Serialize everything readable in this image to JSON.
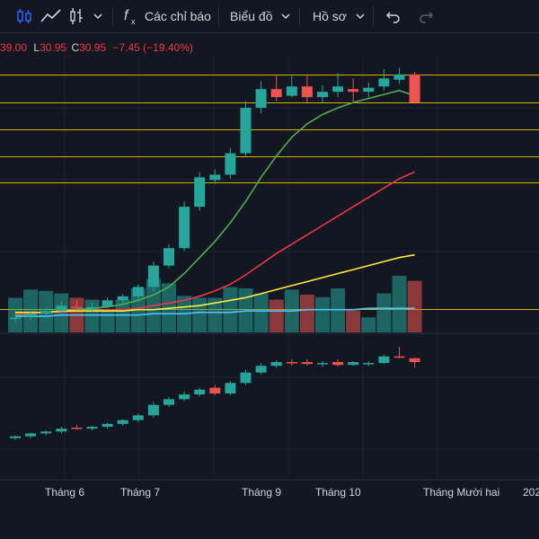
{
  "toolbar": {
    "indicators_label": "Các chỉ báo",
    "chart_label": "Biểu đồ",
    "profile_label": "Hồ sơ"
  },
  "legend": {
    "o_partial": "39.00",
    "l_label": "L",
    "l_value": "30.95",
    "c_label": "C",
    "c_value": "30.95",
    "change": "−7.45 (−19.40%)"
  },
  "time_axis": {
    "labels": [
      "Tháng 6",
      "Tháng 7",
      "Tháng 9",
      "Tháng 10",
      "Tháng Mười hai",
      "202"
    ]
  },
  "colors": {
    "background": "#131722",
    "up": "#26a69a",
    "down": "#ef5350",
    "ma_green": "#4caf50",
    "ma_red": "#f23645",
    "ma_yellow": "#ffeb3b",
    "ma_blue": "#4fc3f7",
    "level_line": "#d4b400"
  },
  "chart_data": {
    "type": "candlestick",
    "upper_panel": {
      "candles": [
        {
          "o": 30.2,
          "h": 30.6,
          "l": 29.9,
          "c": 30.3
        },
        {
          "o": 30.4,
          "h": 30.8,
          "l": 30.1,
          "c": 30.6
        },
        {
          "o": 30.6,
          "h": 31.0,
          "l": 30.3,
          "c": 30.8
        },
        {
          "o": 30.8,
          "h": 31.5,
          "l": 30.6,
          "c": 31.2
        },
        {
          "o": 31.1,
          "h": 31.6,
          "l": 30.8,
          "c": 31.0
        },
        {
          "o": 31.0,
          "h": 31.4,
          "l": 30.8,
          "c": 31.1
        },
        {
          "o": 31.1,
          "h": 31.8,
          "l": 31.0,
          "c": 31.6
        },
        {
          "o": 31.6,
          "h": 32.1,
          "l": 31.3,
          "c": 31.9
        },
        {
          "o": 31.9,
          "h": 32.8,
          "l": 31.7,
          "c": 32.6
        },
        {
          "o": 32.6,
          "h": 34.5,
          "l": 32.3,
          "c": 34.2
        },
        {
          "o": 34.2,
          "h": 35.8,
          "l": 34.0,
          "c": 35.5
        },
        {
          "o": 35.5,
          "h": 39.0,
          "l": 35.3,
          "c": 38.6
        },
        {
          "o": 38.6,
          "h": 41.2,
          "l": 38.3,
          "c": 40.8
        },
        {
          "o": 40.6,
          "h": 41.4,
          "l": 40.3,
          "c": 41.0
        },
        {
          "o": 41.0,
          "h": 43.0,
          "l": 40.7,
          "c": 42.6
        },
        {
          "o": 42.6,
          "h": 46.5,
          "l": 42.4,
          "c": 46.0
        },
        {
          "o": 46.0,
          "h": 48.0,
          "l": 45.6,
          "c": 47.4
        },
        {
          "o": 47.4,
          "h": 48.4,
          "l": 46.5,
          "c": 46.8
        },
        {
          "o": 46.9,
          "h": 48.5,
          "l": 46.8,
          "c": 47.6
        },
        {
          "o": 47.6,
          "h": 48.4,
          "l": 46.4,
          "c": 46.8
        },
        {
          "o": 46.8,
          "h": 47.7,
          "l": 46.4,
          "c": 47.2
        },
        {
          "o": 47.2,
          "h": 48.6,
          "l": 46.8,
          "c": 47.6
        },
        {
          "o": 47.4,
          "h": 48.2,
          "l": 46.4,
          "c": 47.2
        },
        {
          "o": 47.2,
          "h": 47.9,
          "l": 46.8,
          "c": 47.5
        },
        {
          "o": 47.6,
          "h": 48.9,
          "l": 47.3,
          "c": 48.2
        },
        {
          "o": 48.1,
          "h": 49.0,
          "l": 47.8,
          "c": 48.5
        },
        {
          "o": 48.5,
          "h": 48.7,
          "l": 46.3,
          "c": 46.4
        }
      ],
      "moving_averages": [
        {
          "color": "ma_green",
          "values": [
            30.5,
            30.6,
            30.7,
            30.8,
            30.9,
            31.0,
            31.1,
            31.3,
            31.6,
            32.0,
            32.6,
            33.6,
            34.8,
            36.0,
            37.4,
            39.0,
            40.8,
            42.4,
            43.8,
            44.8,
            45.5,
            46.0,
            46.4,
            46.7,
            47.0,
            47.3,
            46.9
          ]
        },
        {
          "color": "ma_red",
          "values": [
            30.6,
            30.6,
            30.7,
            30.7,
            30.8,
            30.8,
            30.9,
            30.9,
            31.0,
            31.2,
            31.4,
            31.6,
            31.9,
            32.3,
            32.8,
            33.5,
            34.3,
            35.1,
            35.8,
            36.5,
            37.2,
            37.9,
            38.6,
            39.3,
            40.0,
            40.7,
            41.2
          ]
        },
        {
          "color": "ma_yellow",
          "values": [
            30.7,
            30.7,
            30.7,
            30.8,
            30.8,
            30.8,
            30.8,
            30.8,
            30.9,
            30.9,
            31.0,
            31.1,
            31.2,
            31.4,
            31.6,
            31.8,
            32.1,
            32.4,
            32.7,
            33.0,
            33.3,
            33.6,
            33.9,
            34.2,
            34.5,
            34.8,
            35.0
          ]
        },
        {
          "color": "ma_blue",
          "values": [
            30.4,
            30.4,
            30.4,
            30.5,
            30.5,
            30.5,
            30.5,
            30.5,
            30.5,
            30.6,
            30.6,
            30.6,
            30.7,
            30.7,
            30.7,
            30.8,
            30.8,
            30.8,
            30.8,
            30.9,
            30.9,
            30.9,
            30.9,
            31.0,
            31.0,
            31.0,
            31.0
          ]
        }
      ],
      "horizontal_levels": [
        48.5,
        46.4,
        44.4,
        42.4,
        40.4,
        30.95
      ],
      "volume_ratio": [
        0.55,
        0.68,
        0.66,
        0.62,
        0.55,
        0.52,
        0.35,
        0.52,
        0.7,
        0.85,
        0.78,
        0.58,
        0.55,
        0.55,
        0.72,
        0.7,
        0.62,
        0.52,
        0.68,
        0.6,
        0.56,
        0.7,
        0.35,
        0.24,
        0.62,
        0.9,
        0.82
      ]
    },
    "lower_panel": {
      "candles": [
        {
          "o": 30.0,
          "h": 30.3,
          "l": 29.8,
          "c": 30.2
        },
        {
          "o": 30.2,
          "h": 30.6,
          "l": 30.0,
          "c": 30.5
        },
        {
          "o": 30.5,
          "h": 30.8,
          "l": 30.3,
          "c": 30.7
        },
        {
          "o": 30.7,
          "h": 31.2,
          "l": 30.5,
          "c": 31.0
        },
        {
          "o": 31.1,
          "h": 31.4,
          "l": 30.9,
          "c": 31.0
        },
        {
          "o": 31.0,
          "h": 31.3,
          "l": 30.8,
          "c": 31.2
        },
        {
          "o": 31.2,
          "h": 31.6,
          "l": 31.0,
          "c": 31.5
        },
        {
          "o": 31.5,
          "h": 32.0,
          "l": 31.3,
          "c": 31.9
        },
        {
          "o": 31.9,
          "h": 32.6,
          "l": 31.7,
          "c": 32.4
        },
        {
          "o": 32.4,
          "h": 33.8,
          "l": 32.2,
          "c": 33.5
        },
        {
          "o": 33.5,
          "h": 34.3,
          "l": 33.3,
          "c": 34.1
        },
        {
          "o": 34.1,
          "h": 34.9,
          "l": 33.9,
          "c": 34.6
        },
        {
          "o": 34.6,
          "h": 35.3,
          "l": 34.4,
          "c": 35.1
        },
        {
          "o": 35.3,
          "h": 35.6,
          "l": 34.5,
          "c": 34.7
        },
        {
          "o": 34.7,
          "h": 36.0,
          "l": 34.5,
          "c": 35.8
        },
        {
          "o": 35.8,
          "h": 37.2,
          "l": 35.6,
          "c": 36.9
        },
        {
          "o": 36.9,
          "h": 37.9,
          "l": 36.7,
          "c": 37.6
        },
        {
          "o": 37.6,
          "h": 38.2,
          "l": 37.4,
          "c": 38.0
        },
        {
          "o": 38.0,
          "h": 38.3,
          "l": 37.6,
          "c": 37.9
        },
        {
          "o": 38.0,
          "h": 38.3,
          "l": 37.6,
          "c": 37.8
        },
        {
          "o": 37.8,
          "h": 38.1,
          "l": 37.5,
          "c": 37.9
        },
        {
          "o": 38.0,
          "h": 38.3,
          "l": 37.5,
          "c": 37.7
        },
        {
          "o": 37.7,
          "h": 38.1,
          "l": 37.6,
          "c": 38.0
        },
        {
          "o": 37.8,
          "h": 38.1,
          "l": 37.6,
          "c": 37.9
        },
        {
          "o": 37.9,
          "h": 38.8,
          "l": 37.8,
          "c": 38.6
        },
        {
          "o": 38.6,
          "h": 39.6,
          "l": 38.4,
          "c": 38.5
        },
        {
          "o": 38.4,
          "h": 38.5,
          "l": 37.4,
          "c": 38.0
        }
      ]
    }
  }
}
